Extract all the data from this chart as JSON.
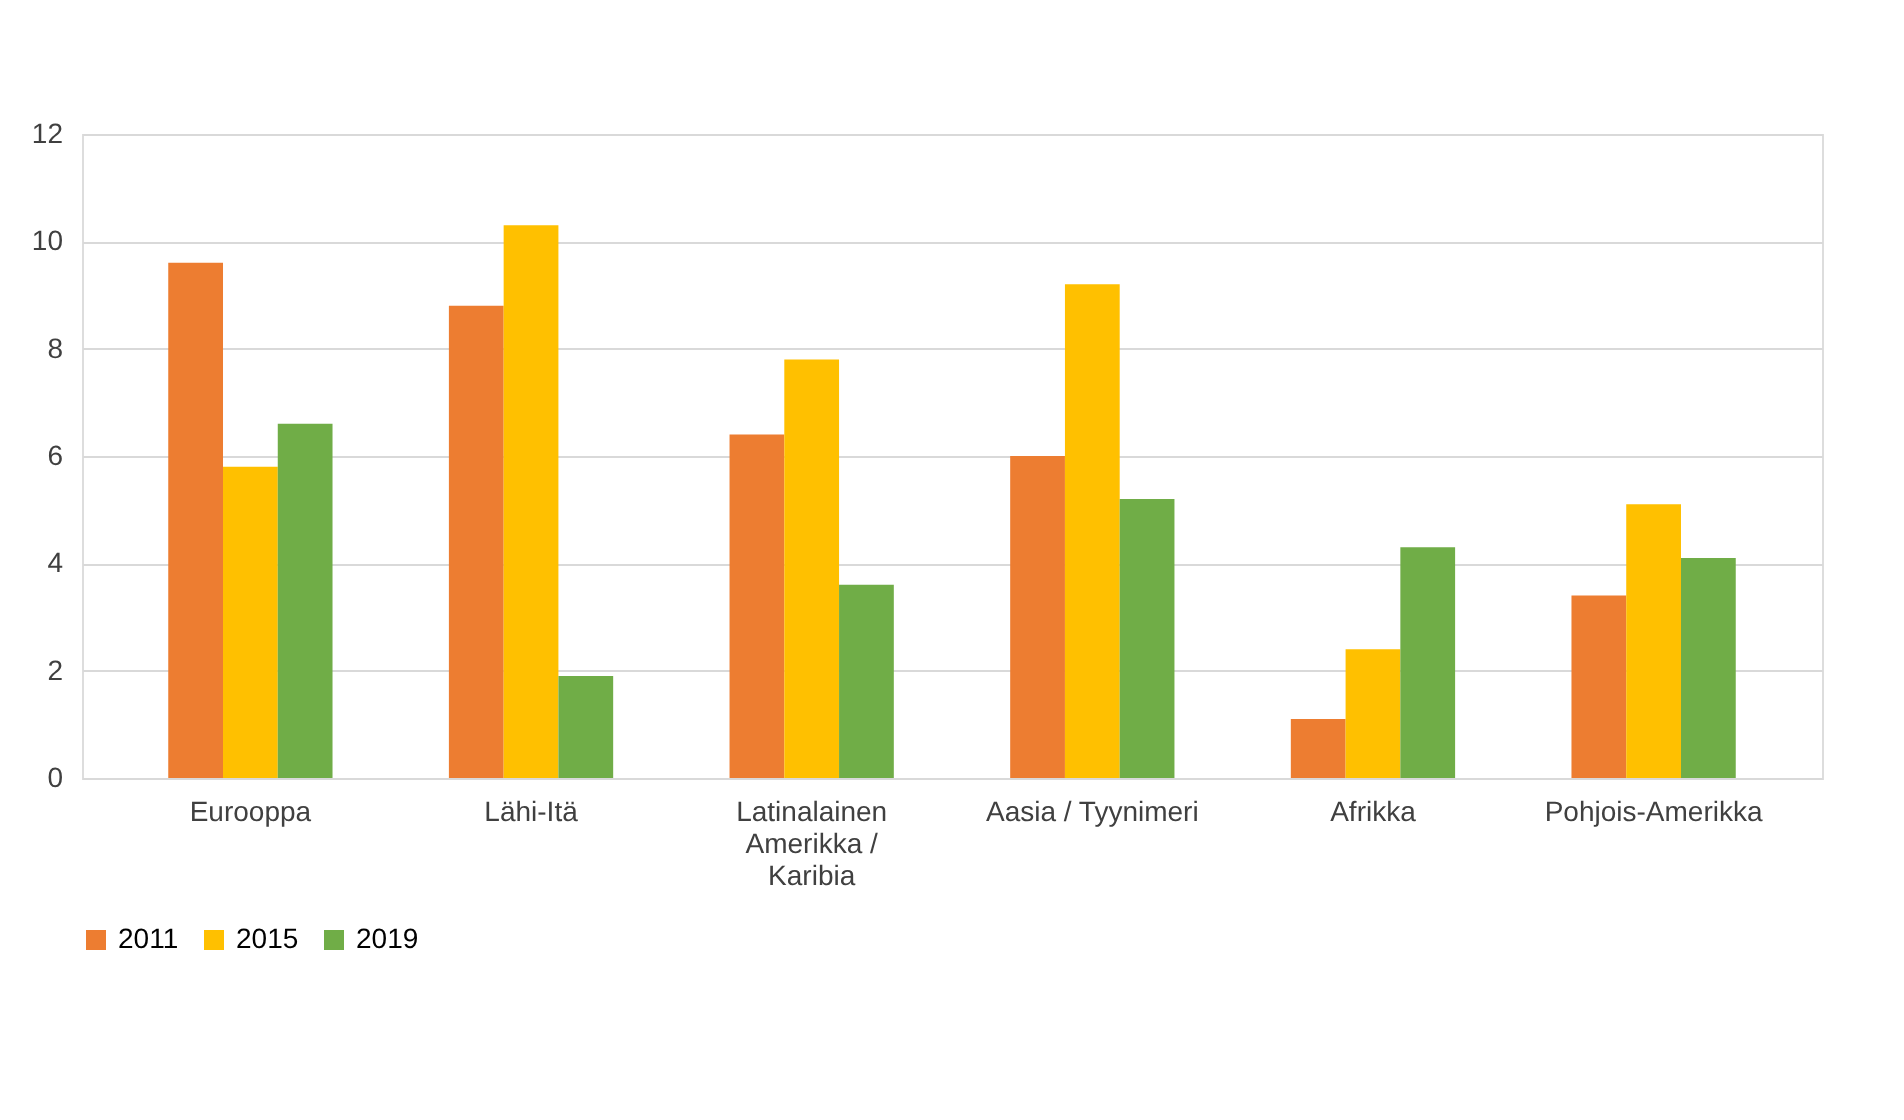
{
  "chart_data": {
    "type": "bar",
    "categories": [
      "Eurooppa",
      "Lähi-Itä",
      "Latinalainen Amerikka / Karibia",
      "Aasia / Tyynimeri",
      "Afrikka",
      "Pohjois-Amerikka"
    ],
    "series": [
      {
        "name": "2011",
        "color": "#ed7d31",
        "values": [
          9.6,
          8.8,
          6.4,
          6.0,
          1.1,
          3.4
        ]
      },
      {
        "name": "2015",
        "color": "#ffc000",
        "values": [
          5.8,
          10.3,
          7.8,
          9.2,
          2.4,
          5.1
        ]
      },
      {
        "name": "2019",
        "color": "#70ad47",
        "values": [
          6.6,
          1.9,
          3.6,
          5.2,
          4.3,
          4.1
        ]
      }
    ],
    "ylim": [
      0,
      12
    ],
    "yticks": [
      0,
      2,
      4,
      6,
      8,
      10,
      12
    ],
    "grid": "y",
    "legend": "bottom"
  }
}
